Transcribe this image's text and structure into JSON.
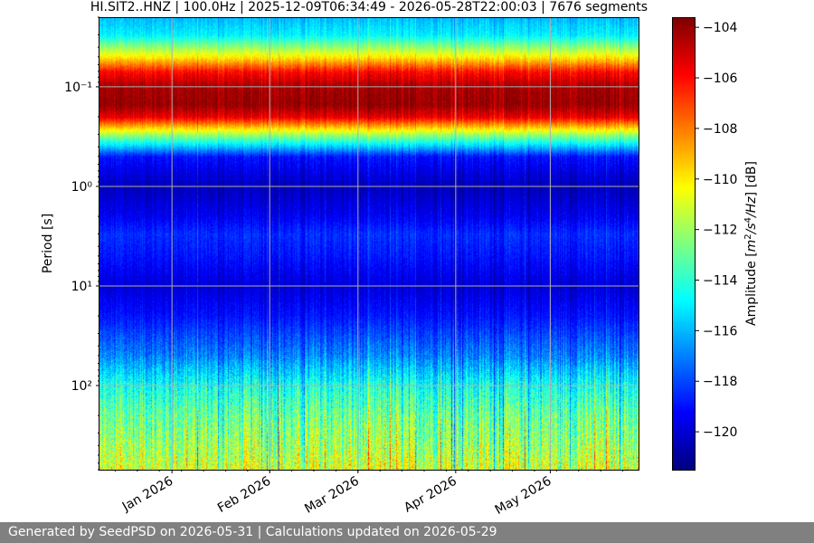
{
  "chart_data": {
    "type": "heatmap",
    "title": "HI.SIT2..HNZ | 100.0Hz | 2025-12-09T06:34:49 - 2026-05-28T22:00:03 | 7676 segments",
    "xlabel": "",
    "ylabel": "Period [s]",
    "y_scale": "log",
    "ylim": [
      0.02,
      700
    ],
    "xlim": [
      "2025-12-09",
      "2026-05-29"
    ],
    "x_tick_dates": [
      "2026-01-01",
      "2026-02-01",
      "2026-03-01",
      "2026-04-01",
      "2026-05-01"
    ],
    "x_tick_labels": [
      "Jan 2026",
      "Feb 2026",
      "Mar 2026",
      "Apr 2026",
      "May 2026"
    ],
    "y_ticks": [
      0.1,
      1,
      10,
      100
    ],
    "y_tick_labels": [
      "10⁻¹",
      "10⁰",
      "10¹",
      "10²"
    ],
    "grid": true,
    "colormap": "jet",
    "colorbar": {
      "label": "Amplitude [m²/s⁴/Hz] [dB]",
      "range": [
        -121.5,
        -103.6
      ],
      "ticks": [
        -104,
        -106,
        -108,
        -110,
        -112,
        -114,
        -116,
        -118,
        -120
      ],
      "tick_labels": [
        "−104",
        "−106",
        "−108",
        "−110",
        "−112",
        "−114",
        "−116",
        "−118",
        "−120"
      ]
    },
    "profile": {
      "period_s": [
        0.02,
        0.03,
        0.05,
        0.07,
        0.1,
        0.15,
        0.2,
        0.3,
        0.5,
        1,
        2,
        3,
        5,
        10,
        20,
        50,
        100,
        200,
        400,
        700
      ],
      "amplitude_db": [
        -116,
        -115,
        -110,
        -106,
        -104.3,
        -104,
        -105.5,
        -112,
        -119,
        -120.5,
        -119.5,
        -118.5,
        -119,
        -120,
        -119,
        -117,
        -114.5,
        -113,
        -112,
        -111
      ]
    }
  },
  "footer": {
    "text": "Generated by SeedPSD on 2026-05-31 | Calculations updated on 2026-05-29"
  }
}
